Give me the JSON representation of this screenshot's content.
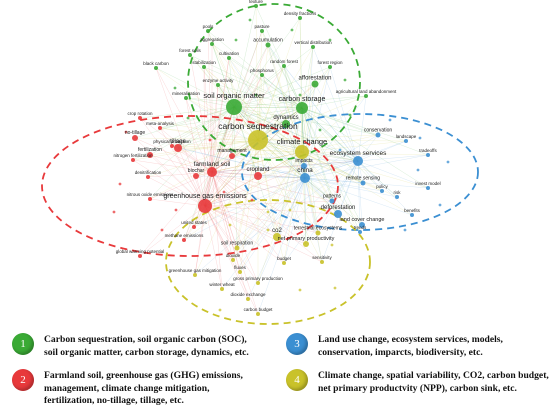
{
  "colors": {
    "cluster1": "#3aaa35",
    "cluster2": "#e8393b",
    "cluster3": "#3b8fd2",
    "cluster4": "#c9c22a"
  },
  "clusters": [
    {
      "id": "1",
      "color_key": "cluster1",
      "terms": [
        "texture",
        "density fractions",
        "pools",
        "pasture",
        "aggregation",
        "accumulation",
        "vertical distribution",
        "forest soils",
        "cultivation",
        "random forest",
        "forest region",
        "stabilization",
        "phosphorus",
        "black carbon",
        "enzyme activity",
        "mineralization",
        "soil organic matter",
        "carbon storage",
        "afforestation",
        "dynamics",
        "agricultural land abandonment"
      ],
      "legend_lines": [
        "Carbon sequestration, soil organic carbon (SOC),",
        "soil organic matter, carbon storage, dynamics, etc."
      ]
    },
    {
      "id": "2",
      "color_key": "cluster2",
      "terms": [
        "crop rotation",
        "meta-analysis",
        "no-tillage",
        "tillage",
        "fertilization",
        "physical protection",
        "farmland soil",
        "cropland",
        "nitrogen fertilization",
        "denitrification",
        "greenhouse gas emissions",
        "nitrous oxide emissions",
        "united states",
        "methane emissions",
        "global warming potential",
        "biochar",
        "management"
      ],
      "legend_lines": [
        "Farmland soil, greenhouse gas (GHG) emissions,",
        "management, climate change mitigation,",
        "fertilization, no-tillage, tillage, etc."
      ]
    },
    {
      "id": "3",
      "color_key": "cluster3",
      "terms": [
        "conservation",
        "landscape",
        "tradeoffs",
        "ecosystem services",
        "china",
        "remote sensing",
        "policy",
        "patterns",
        "invest model",
        "risk",
        "deforestation",
        "benefits",
        "land cover change",
        "impacts",
        "trends"
      ],
      "legend_lines": [
        "Land use change, ecosystem services, models,",
        "conservation, imparcts, biodiversity, etc."
      ]
    },
    {
      "id": "4",
      "color_key": "cluster4",
      "terms": [
        "carbon sequestration",
        "climate change",
        "terrestrial ecosystems",
        "net primary productivity",
        "soil respiration",
        "dioxide",
        "fluxes",
        "budget",
        "sensitivity",
        "greenhouse gas mitigation",
        "winter wheat",
        "gross primary production",
        "dioxide exchange",
        "carbon budget",
        "co2"
      ],
      "legend_lines": [
        "Climate change, spatial variability, CO2, carbon budget,",
        "net primary productvity (NPP), carbon sink, etc."
      ]
    }
  ]
}
